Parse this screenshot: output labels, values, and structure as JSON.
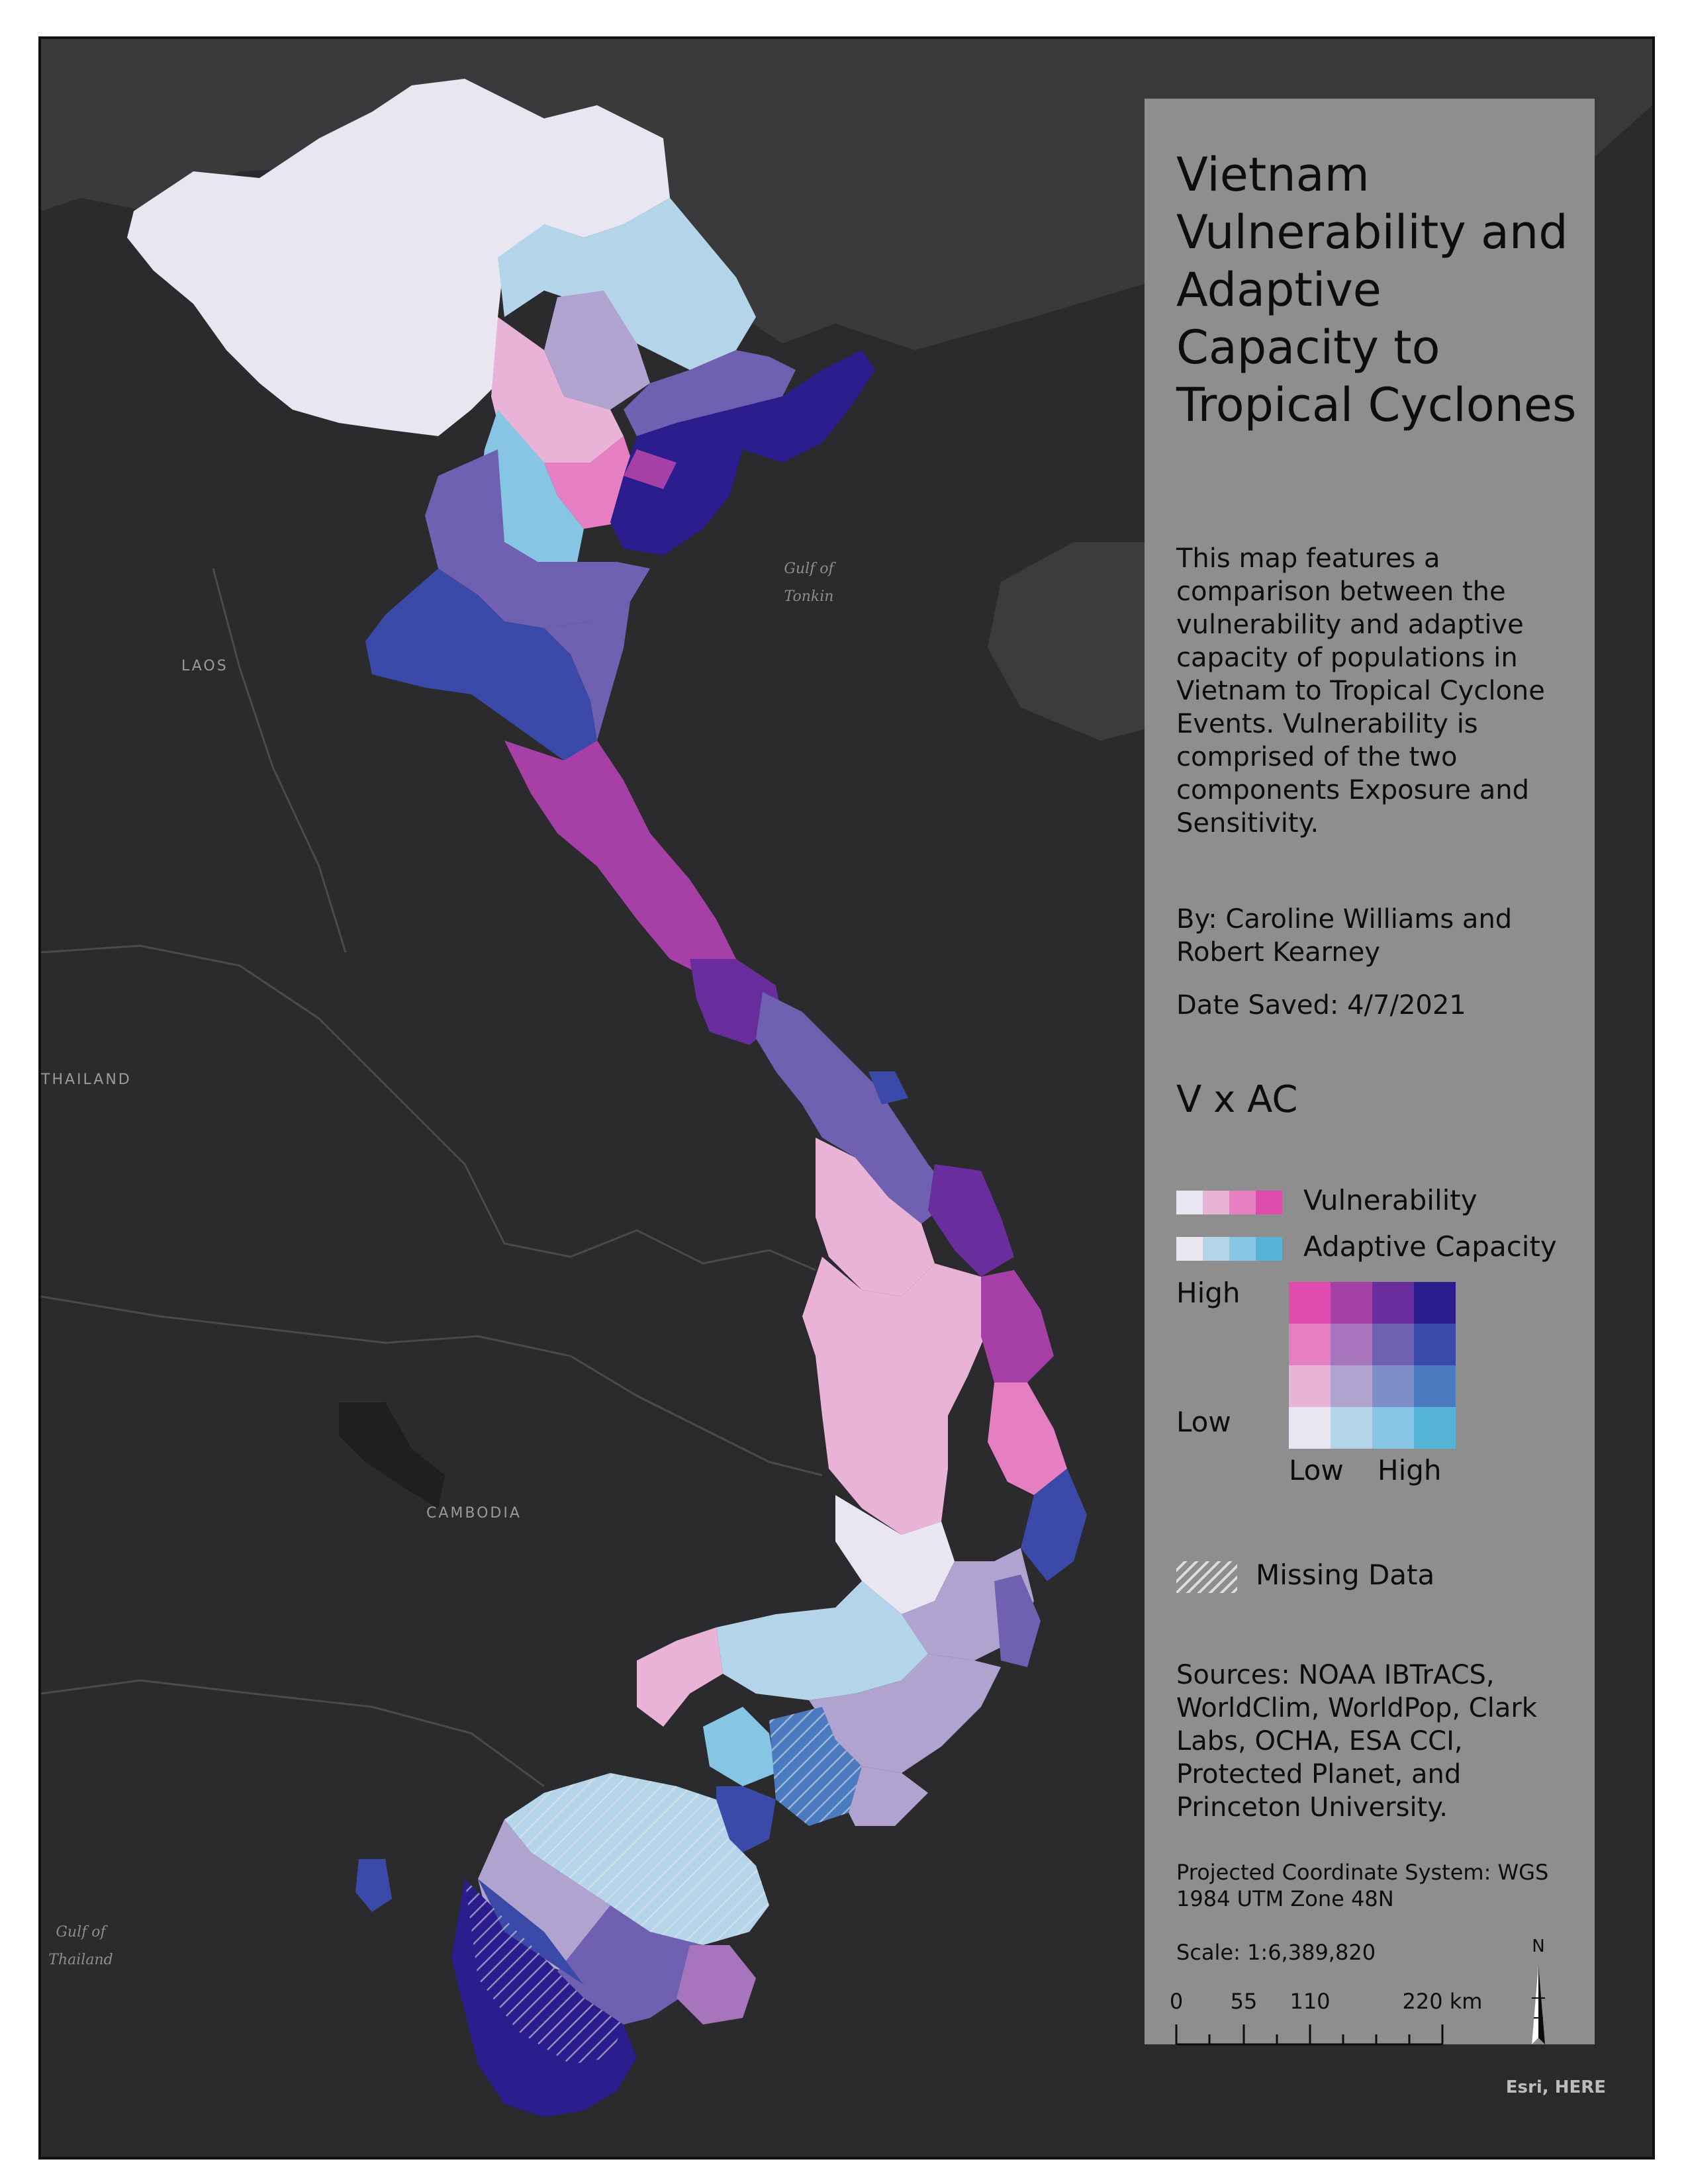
{
  "map": {
    "basemap_labels": {
      "laos": "LAOS",
      "thailand": "THAILAND",
      "cambodia": "CAMBODIA"
    },
    "water_labels": {
      "gulf_tonkin": [
        "Gulf of",
        "Tonkin"
      ],
      "gulf_thailand": [
        "Gulf of",
        "Thailand"
      ]
    },
    "credit": "Esri, HERE"
  },
  "panel": {
    "title": "Vietnam Vulnerability and Adaptive Capacity to Tropical Cyclones",
    "description": "This map features a comparison between the vulnerability and adaptive capacity of populations in Vietnam to Tropical Cyclone Events. Vulnerability is comprised of the two components Exposure and Sensitivity.",
    "byline": "By: Caroline Williams and Robert Kearney",
    "date_saved": "Date Saved: 4/7/2021",
    "sources": "Sources: NOAA IBTrACS, WorldClim, WorldPop, Clark Labs, OCHA, ESA CCI, Protected Planet, and Princeton University.",
    "projection": "Projected Coordinate System: WGS 1984 UTM Zone 48N",
    "scale": "Scale: 1:6,389,820"
  },
  "legend": {
    "title": "V x AC",
    "vulnerability_label": "Vulnerability",
    "adaptive_capacity_label": "Adaptive Capacity",
    "vulnerability_ramp": [
      "#e9e6f2",
      "#e8b3d6",
      "#e57fc2",
      "#e04cad"
    ],
    "adaptive_capacity_ramp": [
      "#e9e6f2",
      "#b4d5e9",
      "#86c5e3",
      "#55b3d8"
    ],
    "high_label": "High",
    "low_label": "Low",
    "x_low": "Low",
    "x_high": "High",
    "missing_label": "Missing Data",
    "bivariate_grid": [
      [
        "#e04cad",
        "#a640a7",
        "#6a2d9e",
        "#2b1d8e"
      ],
      [
        "#e57fc2",
        "#a874bd",
        "#7060b1",
        "#3b4aa8"
      ],
      [
        "#e8b3d6",
        "#b0a3d0",
        "#7d8fc7",
        "#4a7bc0"
      ],
      [
        "#e9e6f2",
        "#b4d5e9",
        "#86c5e3",
        "#55b3d8"
      ]
    ]
  },
  "scalebar": {
    "ticks": [
      "0",
      "55",
      "110",
      "220 km"
    ]
  },
  "north_arrow": {
    "label": "N"
  }
}
